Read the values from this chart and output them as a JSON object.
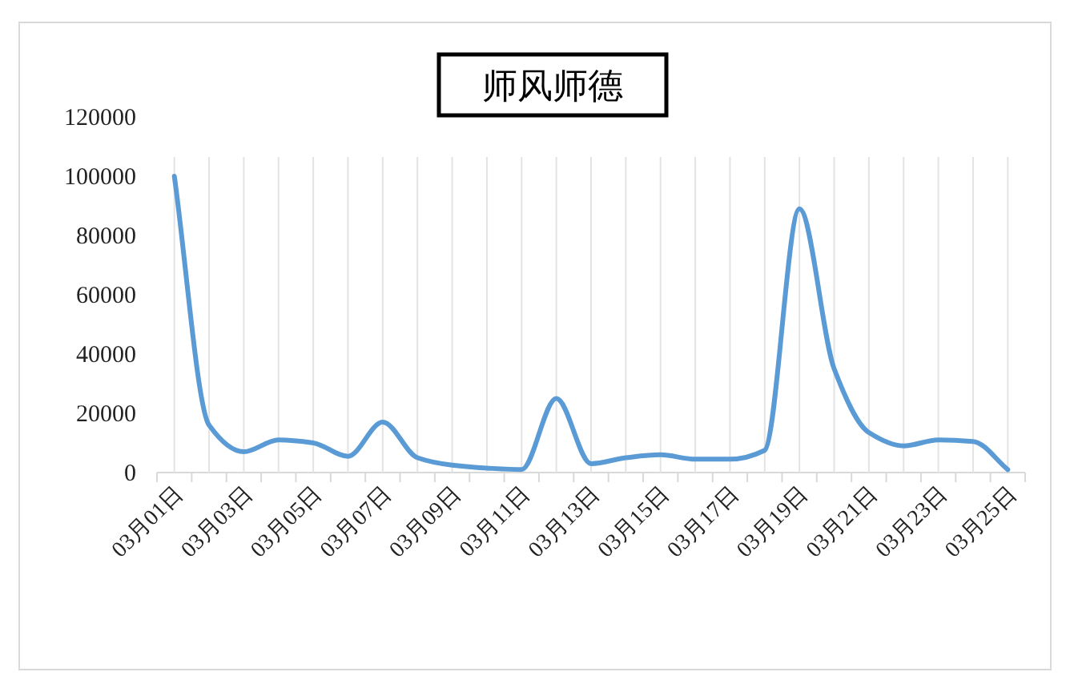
{
  "chart_data": {
    "type": "line",
    "title": "师风师德",
    "categories": [
      "03月01日",
      null,
      "03月03日",
      null,
      "03月05日",
      null,
      "03月07日",
      null,
      "03月09日",
      null,
      "03月11日",
      null,
      "03月13日",
      null,
      "03月15日",
      null,
      "03月17日",
      null,
      "03月19日",
      null,
      "03月21日",
      null,
      "03月23日",
      null,
      "03月25日"
    ],
    "series": [
      {
        "color": "#5b9bd5",
        "values": [
          100000,
          16000,
          7000,
          11000,
          10000,
          5500,
          17000,
          5000,
          2500,
          1500,
          1000,
          25000,
          3000,
          5000,
          6000,
          4500,
          4500,
          7500,
          89000,
          35000,
          13500,
          9000,
          11000,
          10500,
          1000
        ]
      }
    ],
    "ylim": [
      0,
      120000
    ],
    "yticks": [
      0,
      20000,
      40000,
      60000,
      80000,
      100000,
      120000
    ],
    "grid": "x",
    "marker": "none",
    "line_style": "solid"
  }
}
